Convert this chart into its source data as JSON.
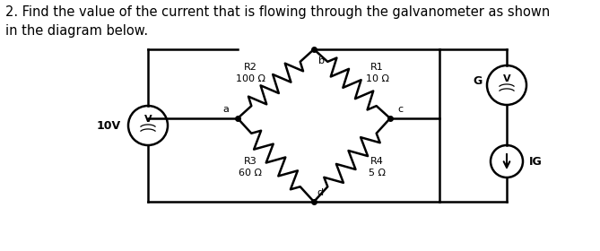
{
  "title": "2. Find the value of the current that is flowing through the galvanometer as shown\nin the diagram below.",
  "title_fontsize": 10.5,
  "background_color": "#ffffff",
  "R1_label": "R1\n10 Ω",
  "R2_label": "R2\n100 Ω",
  "R3_label": "R3\n60 Ω",
  "R4_label": "R4\n5 Ω",
  "voltage_label": "10V",
  "IG_label": "IG",
  "node_a": "a",
  "node_b": "b",
  "node_c": "c",
  "node_d": "d",
  "node_G": "G"
}
